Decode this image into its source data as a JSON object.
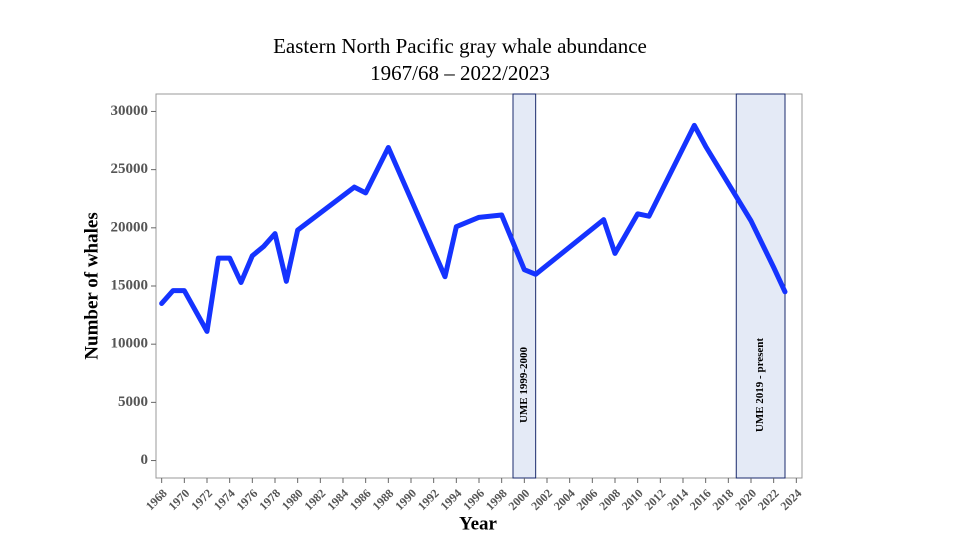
{
  "chart_data": {
    "type": "line",
    "title": "Eastern North Pacific gray whale abundance",
    "subtitle": "1967/68 – 2022/2023",
    "x_label": "Year",
    "y_label": "Number of whales",
    "x": [
      1968,
      1969,
      1970,
      1972,
      1973,
      1974,
      1975,
      1976,
      1977,
      1978,
      1979,
      1980,
      1985,
      1986,
      1988,
      1993,
      1994,
      1996,
      1998,
      2000,
      2001,
      2007,
      2008,
      2010,
      2011,
      2015,
      2016,
      2020,
      2022,
      2023
    ],
    "series": [
      {
        "color": "#1533ff",
        "values": [
          13500,
          14600,
          14600,
          11100,
          17400,
          17400,
          15300,
          17600,
          18400,
          19500,
          15400,
          19800,
          23500,
          23000,
          26900,
          15800,
          20100,
          20900,
          21100,
          16400,
          16000,
          20700,
          17800,
          21200,
          21000,
          28800,
          27000,
          20600,
          16600,
          14500
        ]
      }
    ],
    "shaded_regions": [
      {
        "label": "UME 1999-2000",
        "range": [
          1999,
          2001
        ]
      },
      {
        "label": "UME 2019 - present",
        "range": [
          2018.7,
          2023
        ]
      }
    ],
    "xlim": [
      1967.5,
      2024.5
    ],
    "xticks": [
      1968,
      1970,
      1972,
      1974,
      1976,
      1978,
      1980,
      1982,
      1984,
      1986,
      1988,
      1990,
      1992,
      1994,
      1996,
      1998,
      2000,
      2002,
      2004,
      2006,
      2008,
      2010,
      2012,
      2014,
      2016,
      2018,
      2020,
      2022,
      2024
    ],
    "ylim": [
      -1500,
      31500
    ],
    "yticks": [
      0,
      5000,
      10000,
      15000,
      20000,
      25000,
      30000
    ]
  }
}
